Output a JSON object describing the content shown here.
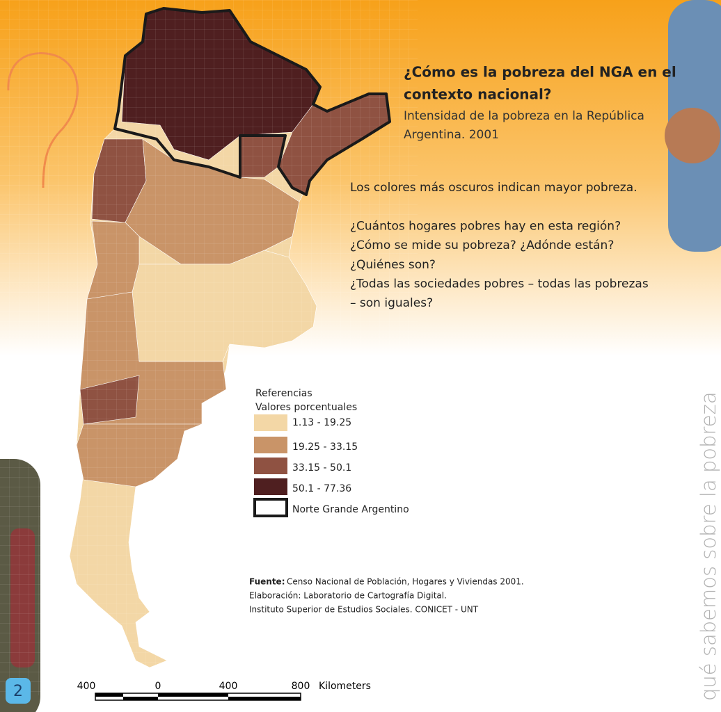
{
  "header": {
    "title_lines": [
      "¿Cómo es la pobreza del NGA en el",
      "contexto nacional?"
    ],
    "subtitle_lines": [
      "Intensidad de la pobreza en la República",
      "Argentina. 2001"
    ]
  },
  "body": {
    "lines": [
      "Los colores más oscuros indican mayor pobreza.",
      "",
      "¿Cuántos hogares pobres hay en esta región?",
      "¿Cómo se mide su pobreza? ¿Adónde están?",
      "¿Quiénes son?",
      "¿Todas las sociedades pobres – todas las pobrezas",
      "– son iguales?"
    ]
  },
  "legend": {
    "title": "Referencias",
    "subtitle": "Valores porcentuales",
    "items": [
      {
        "label": "1.13 - 19.25",
        "color": "#f3d7a6"
      },
      {
        "label": "19.25 - 33.15",
        "color": "#c99468"
      },
      {
        "label": "33.15 - 50.1",
        "color": "#8f5242"
      },
      {
        "label": "50.1 - 77.36",
        "color": "#4f1f20"
      }
    ],
    "border_item": "Norte Grande Argentino"
  },
  "source": {
    "bold": "Fuente:",
    "line1": "Censo Nacional de Población, Hogares y Viviendas 2001.",
    "line2": "Elaboración: Laboratorio de Cartografía Digital.",
    "line3": "Instituto Superior de Estudios Sociales. CONICET - UNT"
  },
  "scale": {
    "labels": [
      "400",
      "0",
      "400",
      "800"
    ],
    "unit": "Kilometers"
  },
  "side_text": "qué sabemos sobre la pobreza",
  "page_number": "2"
}
